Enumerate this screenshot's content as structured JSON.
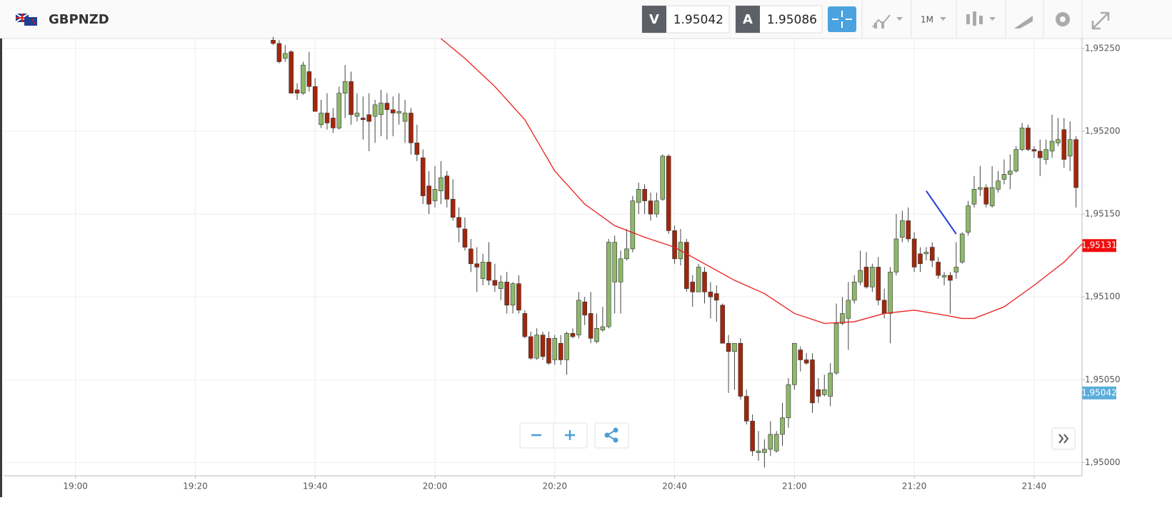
{
  "header": {
    "symbol": "GBPNZD",
    "sell_label": "V",
    "sell_price": 1.95042,
    "buy_label": "A",
    "buy_price": 1.95086,
    "timeframe": "1M"
  },
  "chart_data": {
    "type": "candlestick",
    "x": [
      "19:33",
      "19:34",
      "19:35",
      "19:36",
      "19:37",
      "19:38",
      "19:39",
      "19:40",
      "19:41",
      "19:42",
      "19:43",
      "19:44",
      "19:45",
      "19:46",
      "19:47",
      "19:48",
      "19:49",
      "19:50",
      "19:51",
      "19:52",
      "19:53",
      "19:54",
      "19:55",
      "19:56",
      "19:57",
      "19:58",
      "19:59",
      "20:00",
      "20:01",
      "20:02",
      "20:03",
      "20:04",
      "20:05",
      "20:06",
      "20:07",
      "20:08",
      "20:09",
      "20:10",
      "20:11",
      "20:12",
      "20:13",
      "20:14",
      "20:15",
      "20:16",
      "20:17",
      "20:18",
      "20:19",
      "20:20",
      "20:21",
      "20:22",
      "20:23",
      "20:24",
      "20:25",
      "20:26",
      "20:27",
      "20:28",
      "20:29",
      "20:30",
      "20:31",
      "20:32",
      "20:33",
      "20:34",
      "20:35",
      "20:36",
      "20:37",
      "20:38",
      "20:39",
      "20:40",
      "20:41",
      "20:42",
      "20:43",
      "20:44",
      "20:45",
      "20:46",
      "20:47",
      "20:48",
      "20:49",
      "20:50",
      "20:51",
      "20:52",
      "20:53",
      "20:54",
      "20:55",
      "20:56",
      "20:57",
      "20:58",
      "20:59",
      "21:00",
      "21:01",
      "21:02",
      "21:03",
      "21:04",
      "21:05",
      "21:06",
      "21:07",
      "21:08",
      "21:09",
      "21:10",
      "21:11",
      "21:12",
      "21:13",
      "21:14",
      "21:15",
      "21:16",
      "21:17",
      "21:18",
      "21:19",
      "21:20",
      "21:21",
      "21:22",
      "21:23",
      "21:24",
      "21:25",
      "21:26",
      "21:27",
      "21:28",
      "21:29",
      "21:30",
      "21:31",
      "21:32",
      "21:33",
      "21:34",
      "21:35",
      "21:36",
      "21:37",
      "21:38",
      "21:39",
      "21:40",
      "21:41",
      "21:42",
      "21:43",
      "21:44",
      "21:45",
      "21:46",
      "21:47"
    ],
    "candles": {
      "open": [
        1.95255,
        1.95253,
        1.95244,
        1.95248,
        1.95225,
        1.95223,
        1.95236,
        1.95227,
        1.95204,
        1.95211,
        1.95208,
        1.95202,
        1.95223,
        1.9523,
        1.95209,
        1.95208,
        1.9521,
        1.95209,
        1.9521,
        1.95217,
        1.95213,
        1.95211,
        1.95206,
        1.95211,
        1.95193,
        1.95184,
        1.95167,
        1.95158,
        1.95164,
        1.95173,
        1.95159,
        1.95148,
        1.95141,
        1.95129,
        1.9512,
        1.95111,
        1.95121,
        1.9511,
        1.95105,
        1.95109,
        1.95095,
        1.95108,
        1.9509,
        1.95076,
        1.95063,
        1.95077,
        1.95075,
        1.95062,
        1.95072,
        1.95062,
        1.95078,
        1.95077,
        1.95097,
        1.9509,
        1.95073,
        1.9508,
        1.95082,
        1.95109,
        1.95109,
        1.95123,
        1.95129,
        1.95157,
        1.95165,
        1.95158,
        1.9515,
        1.95159,
        1.95185,
        1.9514,
        1.95123,
        1.95133,
        1.95109,
        1.95103,
        1.95115,
        1.95103,
        1.95102,
        1.95095,
        1.95072,
        1.95067,
        1.95072,
        1.9504,
        1.95025,
        1.95006,
        1.95006,
        1.95008,
        1.95007,
        1.95017,
        1.95027,
        1.95047,
        1.95068,
        1.95062,
        1.95062,
        1.95044,
        1.95041,
        1.9504,
        1.95054,
        1.95084,
        1.95087,
        1.95098,
        1.95109,
        1.95118,
        1.95106,
        1.95118,
        1.95098,
        1.9509,
        1.95115,
        1.95136,
        1.95146,
        1.95135,
        1.95126,
        1.95126,
        1.9513,
        1.95121,
        1.95112,
        1.95113,
        1.95115,
        1.95121,
        1.95139,
        1.95156,
        1.95165,
        1.95166,
        1.95155,
        1.95165,
        1.95171,
        1.95174,
        1.95176,
        1.95189,
        1.95202,
        1.95189,
        1.95188,
        1.95183,
        1.95188,
        1.95193,
        1.95201,
        1.95185,
        1.95195
      ],
      "high": [
        1.95257,
        1.95255,
        1.95252,
        1.95249,
        1.95229,
        1.95242,
        1.95248,
        1.95232,
        1.95219,
        1.95223,
        1.95214,
        1.95227,
        1.9524,
        1.95236,
        1.95223,
        1.95221,
        1.95223,
        1.95219,
        1.95225,
        1.95223,
        1.95221,
        1.95223,
        1.95219,
        1.95214,
        1.95204,
        1.95189,
        1.95176,
        1.95179,
        1.95182,
        1.95176,
        1.95171,
        1.95154,
        1.95148,
        1.95135,
        1.9513,
        1.95126,
        1.95133,
        1.9512,
        1.95113,
        1.95115,
        1.95109,
        1.95113,
        1.95092,
        1.95079,
        1.95081,
        1.95079,
        1.95079,
        1.95077,
        1.95077,
        1.95079,
        1.95081,
        1.95103,
        1.951,
        1.95103,
        1.9509,
        1.95094,
        1.95135,
        1.95137,
        1.95128,
        1.95141,
        1.95161,
        1.95169,
        1.95168,
        1.95163,
        1.95163,
        1.95186,
        1.95186,
        1.95143,
        1.95141,
        1.95135,
        1.95113,
        1.9512,
        1.95118,
        1.95109,
        1.95107,
        1.95096,
        1.95077,
        1.95072,
        1.95075,
        1.95044,
        1.95029,
        1.95019,
        1.95014,
        1.95025,
        1.95019,
        1.95036,
        1.95051,
        1.95072,
        1.9507,
        1.95066,
        1.95066,
        1.95051,
        1.95053,
        1.9506,
        1.95096,
        1.951,
        1.95109,
        1.95113,
        1.95128,
        1.95127,
        1.9512,
        1.95124,
        1.95105,
        1.95118,
        1.9515,
        1.95152,
        1.95154,
        1.95139,
        1.9513,
        1.9513,
        1.95133,
        1.95124,
        1.95115,
        1.95115,
        1.95133,
        1.95139,
        1.95158,
        1.95173,
        1.95179,
        1.95168,
        1.95179,
        1.95176,
        1.95183,
        1.95186,
        1.95191,
        1.95205,
        1.95204,
        1.95191,
        1.95195,
        1.95195,
        1.9521,
        1.95208,
        1.95208,
        1.95206,
        1.95197
      ],
      "low": [
        1.95252,
        1.95241,
        1.95242,
        1.95223,
        1.95219,
        1.95222,
        1.95224,
        1.95212,
        1.95202,
        1.95201,
        1.95199,
        1.95201,
        1.95208,
        1.95204,
        1.95206,
        1.95195,
        1.95188,
        1.95193,
        1.95197,
        1.95195,
        1.95197,
        1.95204,
        1.95193,
        1.95186,
        1.95182,
        1.95156,
        1.9515,
        1.95154,
        1.95156,
        1.95154,
        1.95146,
        1.95133,
        1.95128,
        1.95115,
        1.95103,
        1.95107,
        1.95107,
        1.95103,
        1.95098,
        1.9509,
        1.9509,
        1.9509,
        1.95075,
        1.95062,
        1.95062,
        1.95062,
        1.95059,
        1.95059,
        1.95059,
        1.95053,
        1.95075,
        1.95075,
        1.95083,
        1.95072,
        1.95072,
        1.95079,
        1.95081,
        1.9509,
        1.9509,
        1.95122,
        1.95127,
        1.9515,
        1.9515,
        1.95146,
        1.95148,
        1.95158,
        1.95138,
        1.9512,
        1.95119,
        1.95103,
        1.95094,
        1.95103,
        1.95096,
        1.95087,
        1.95085,
        1.95072,
        1.95042,
        1.95044,
        1.95038,
        1.95023,
        1.95004,
        1.95001,
        1.94997,
        1.95004,
        1.95006,
        1.9501,
        1.95021,
        1.95044,
        1.95055,
        1.95059,
        1.9503,
        1.95036,
        1.9504,
        1.95034,
        1.95053,
        1.95083,
        1.95068,
        1.95096,
        1.95107,
        1.95105,
        1.95103,
        1.95095,
        1.95087,
        1.95072,
        1.95113,
        1.95133,
        1.95133,
        1.95115,
        1.95115,
        1.95122,
        1.95118,
        1.95111,
        1.95107,
        1.9509,
        1.95111,
        1.9512,
        1.95137,
        1.95154,
        1.95161,
        1.95154,
        1.95154,
        1.95163,
        1.95168,
        1.95165,
        1.95175,
        1.95188,
        1.95188,
        1.95184,
        1.95173,
        1.9518,
        1.95184,
        1.95191,
        1.95178,
        1.95176,
        1.95154
      ],
      "close": [
        1.95253,
        1.95242,
        1.95247,
        1.95223,
        1.95223,
        1.9524,
        1.95227,
        1.95212,
        1.95211,
        1.95205,
        1.95202,
        1.95223,
        1.9523,
        1.9521,
        1.95211,
        1.95207,
        1.95206,
        1.95216,
        1.95217,
        1.95213,
        1.95211,
        1.95212,
        1.95211,
        1.95193,
        1.95186,
        1.95161,
        1.95156,
        1.95165,
        1.95172,
        1.95159,
        1.95148,
        1.95142,
        1.9513,
        1.9512,
        1.95118,
        1.95121,
        1.9511,
        1.95107,
        1.95109,
        1.95095,
        1.95108,
        1.95092,
        1.95076,
        1.95063,
        1.95077,
        1.95064,
        1.9506,
        1.95075,
        1.95062,
        1.95078,
        1.95076,
        1.95098,
        1.95089,
        1.95075,
        1.95081,
        1.95082,
        1.95133,
        1.95133,
        1.95123,
        1.95129,
        1.95158,
        1.95165,
        1.95158,
        1.9515,
        1.95158,
        1.95185,
        1.9514,
        1.95123,
        1.95133,
        1.95105,
        1.95103,
        1.95118,
        1.95103,
        1.951,
        1.95098,
        1.95072,
        1.95067,
        1.95072,
        1.9504,
        1.95025,
        1.95007,
        1.95007,
        1.95008,
        1.95017,
        1.95017,
        1.95027,
        1.95047,
        1.95072,
        1.95062,
        1.9506,
        1.95036,
        1.9504,
        1.95044,
        1.95054,
        1.95084,
        1.9509,
        1.95098,
        1.95109,
        1.95116,
        1.95106,
        1.95118,
        1.95098,
        1.9509,
        1.95115,
        1.95135,
        1.95146,
        1.95135,
        1.95118,
        1.9512,
        1.95127,
        1.95122,
        1.95113,
        1.95113,
        1.9511,
        1.95118,
        1.95138,
        1.95155,
        1.95165,
        1.95166,
        1.95156,
        1.95166,
        1.9517,
        1.95174,
        1.95176,
        1.95189,
        1.95202,
        1.95189,
        1.95188,
        1.95184,
        1.95189,
        1.95194,
        1.95195,
        1.95183,
        1.95195,
        1.95166
      ],
      "up_color": "#8db86a",
      "down_color": "#a3260c"
    },
    "overlays": [
      {
        "type": "line",
        "color": "#e8201c",
        "x": [
          "20:01",
          "20:05",
          "20:10",
          "20:15",
          "20:20",
          "20:25",
          "20:30",
          "20:35",
          "20:40",
          "20:45",
          "20:50",
          "20:55",
          "21:00",
          "21:05",
          "21:10",
          "21:15",
          "21:20",
          "21:25",
          "21:28",
          "21:30",
          "21:35",
          "21:40",
          "21:45",
          "21:48"
        ],
        "values": [
          1.95256,
          1.95244,
          1.95227,
          1.95207,
          1.95176,
          1.95156,
          1.95143,
          1.95136,
          1.9513,
          1.9512,
          1.9511,
          1.95102,
          1.9509,
          1.95084,
          1.95085,
          1.9509,
          1.95092,
          1.95089,
          1.95087,
          1.95087,
          1.95094,
          1.95107,
          1.95121,
          1.95132
        ]
      },
      {
        "type": "line",
        "color": "#2b3fd6",
        "x": [
          "21:22",
          "21:27"
        ],
        "values": [
          1.95164,
          1.95138
        ]
      }
    ],
    "xlim": [
      "18:48",
      "21:48"
    ],
    "xticks": [
      "19:00",
      "19:20",
      "19:40",
      "20:00",
      "20:20",
      "20:40",
      "21:00",
      "21:20",
      "21:40"
    ],
    "ylim": [
      1.94992,
      1.95256
    ],
    "yticks": [
      {
        "value": 1.95,
        "label": "1,95000"
      },
      {
        "value": 1.9505,
        "label": "1,95050"
      },
      {
        "value": 1.951,
        "label": "1,95100"
      },
      {
        "value": 1.9515,
        "label": "1,95150"
      },
      {
        "value": 1.952,
        "label": "1,95200"
      },
      {
        "value": 1.9525,
        "label": "1,95250"
      }
    ],
    "grid": true,
    "price_tags": [
      {
        "value": 1.95131,
        "label": "1,95131",
        "color": "#f20c0c"
      },
      {
        "value": 1.95042,
        "label": "1,95042",
        "color": "#5aaedc"
      }
    ]
  }
}
